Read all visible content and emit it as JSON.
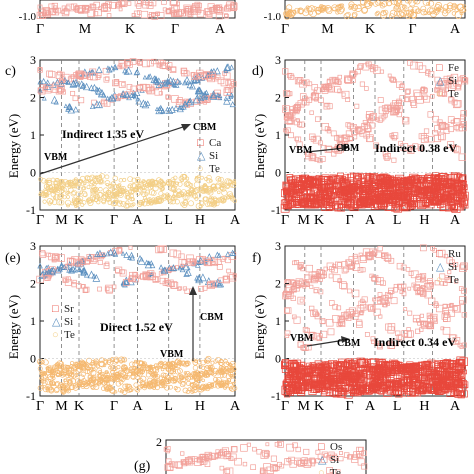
{
  "figure": {
    "colors": {
      "red": "#e8483c",
      "red_light": "#f2a19a",
      "orange": "#f5b971",
      "blue": "#5b8fbf",
      "yellow": "#f3cf87"
    },
    "top_strip": {
      "left": {
        "y_tick": "-1.0",
        "x_ticks": [
          "Γ",
          "M",
          "K",
          "Γ",
          "A"
        ]
      },
      "right": {
        "y_tick": "-1.0",
        "x_ticks": [
          "Γ",
          "M",
          "K",
          "Γ",
          "A"
        ]
      }
    },
    "panels": [
      {
        "id": "c",
        "label": "c)",
        "ylabel": "Energy (eV)",
        "y_ticks": [
          "3",
          "2",
          "1",
          "0",
          "-1"
        ],
        "x_ticks": [
          "Γ",
          "M",
          "K",
          "Γ",
          "A",
          "L",
          "H",
          "A"
        ],
        "legend": [
          {
            "symbol": "□",
            "text": "Ca"
          },
          {
            "symbol": "△",
            "text": "Si"
          },
          {
            "symbol": "○",
            "text": "Te"
          }
        ],
        "gap_text": "Indirect 1.35 eV",
        "vbm": "VBM",
        "cbm": "CBM"
      },
      {
        "id": "d",
        "label": "d)",
        "ylabel": "Energy (eV)",
        "y_ticks": [
          "3",
          "2",
          "1",
          "0",
          "-1"
        ],
        "x_ticks": [
          "Γ",
          "M",
          "K",
          "Γ",
          "A",
          "L",
          "H",
          "A"
        ],
        "legend": [
          {
            "symbol": "□",
            "text": "Fe"
          },
          {
            "symbol": "△",
            "text": "Si"
          },
          {
            "symbol": "○",
            "text": "Te"
          }
        ],
        "gap_text": "Indirect 0.38 eV",
        "vbm": "VBM",
        "cbm": "CBM"
      },
      {
        "id": "e",
        "label": "(e)",
        "ylabel": "Energy (eV)",
        "y_ticks": [
          "3",
          "2",
          "1",
          "0",
          "-1"
        ],
        "x_ticks": [
          "Γ",
          "M",
          "K",
          "Γ",
          "A",
          "L",
          "H",
          "A"
        ],
        "legend": [
          {
            "symbol": "□",
            "text": "Sr"
          },
          {
            "symbol": "△",
            "text": "Si"
          },
          {
            "symbol": "○",
            "text": "Te"
          }
        ],
        "gap_text": "Direct 1.52 eV",
        "vbm": "VBM",
        "cbm": "CBM"
      },
      {
        "id": "f",
        "label": "f)",
        "ylabel": "Energy (eV)",
        "y_ticks": [
          "3",
          "2",
          "1",
          "0",
          "-1"
        ],
        "x_ticks": [
          "Γ",
          "M",
          "K",
          "Γ",
          "A",
          "L",
          "H",
          "A"
        ],
        "legend": [
          {
            "symbol": "□",
            "text": "Ru"
          },
          {
            "symbol": "△",
            "text": "Si"
          },
          {
            "symbol": "○",
            "text": "Te"
          }
        ],
        "gap_text": "Indirect 0.34 eV",
        "vbm": "VBM",
        "cbm": "CBM"
      },
      {
        "id": "g",
        "label": "(g)",
        "y_ticks": [
          "2"
        ],
        "legend": [
          {
            "symbol": "□",
            "text": "Os"
          },
          {
            "symbol": "△",
            "text": "Si"
          },
          {
            "symbol": "○",
            "text": "Te"
          }
        ]
      }
    ]
  }
}
